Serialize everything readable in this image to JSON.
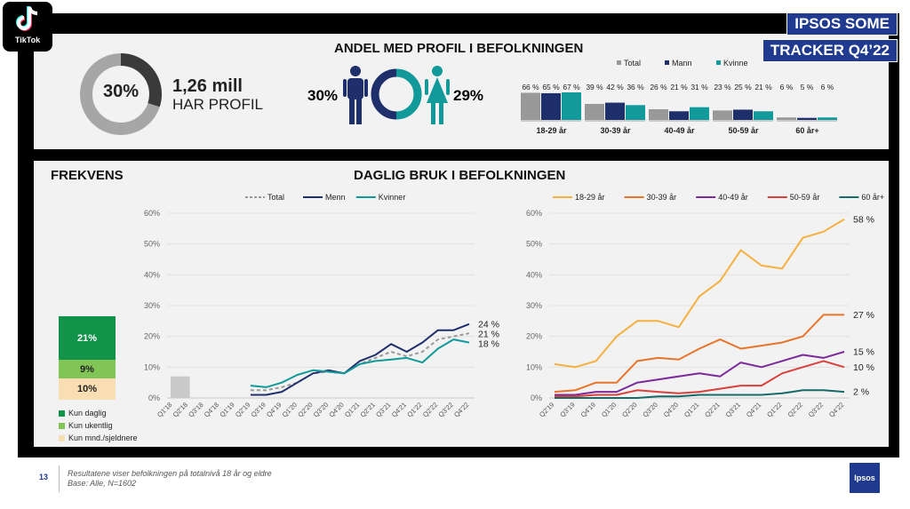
{
  "brand": {
    "tiktok": "TikTok",
    "ipsos": "Ipsos"
  },
  "tags": {
    "line1": "IPSOS SOME",
    "line2": "TRACKER Q4’22"
  },
  "profile": {
    "percent": "30%",
    "value": "1,26 mill",
    "label": "HAR PROFIL",
    "share": 30
  },
  "gender": {
    "title": "ANDEL MED PROFIL I BEFOLKNINGEN",
    "male": "30%",
    "female": "29%"
  },
  "age_bars": {
    "legend": [
      "Total",
      "Mann",
      "Kvinne"
    ],
    "colors": [
      "#999999",
      "#1f2f6b",
      "#129a9a"
    ],
    "groups": [
      {
        "label": "18-29 år",
        "values": [
          66,
          65,
          67
        ],
        "texts": [
          "66 %",
          "65 %",
          "67 %"
        ]
      },
      {
        "label": "30-39 år",
        "values": [
          39,
          42,
          36
        ],
        "texts": [
          "39 %",
          "42 %",
          "36 %"
        ]
      },
      {
        "label": "40-49 år",
        "values": [
          26,
          21,
          31
        ],
        "texts": [
          "26 %",
          "21 %",
          "31 %"
        ]
      },
      {
        "label": "50-59 år",
        "values": [
          23,
          25,
          21
        ],
        "texts": [
          "23 %",
          "25 %",
          "21 %"
        ]
      },
      {
        "label": "60 år+",
        "values": [
          6,
          5,
          6
        ],
        "texts": [
          "6 %",
          "5 %",
          "6 %"
        ]
      }
    ]
  },
  "frekvens": {
    "title": "FREKVENS",
    "segments": [
      {
        "label": "Kun daglig",
        "value": "21%",
        "share": 21,
        "color": "#12934a"
      },
      {
        "label": "Kun ukentlig",
        "value": "9%",
        "share": 9,
        "color": "#82c557"
      },
      {
        "label": "Kun mnd./sjeldnere",
        "value": "10%",
        "share": 10,
        "color": "#f8deb2"
      }
    ]
  },
  "daily_title": "DAGLIG BRUK I BEFOLKNINGEN",
  "chart_data": [
    {
      "type": "line",
      "y_ticks": [
        "0%",
        "10%",
        "20%",
        "30%",
        "40%",
        "50%",
        "60%"
      ],
      "ylim": [
        0,
        60
      ],
      "x": [
        "Q1'18",
        "Q2'18",
        "Q3'18",
        "Q4'18",
        "Q1'19",
        "Q2'19",
        "Q3'19",
        "Q4'19",
        "Q1'20",
        "Q2'20",
        "Q3'20",
        "Q4'20",
        "Q1'21",
        "Q2'21",
        "Q3'21",
        "Q4'21",
        "Q1'22",
        "Q2'22",
        "Q3'22",
        "Q4'22"
      ],
      "x_labels": [
        "Q1'18",
        "Q2'18",
        "Q3'18",
        "Q4'18",
        "Q1'19",
        "Q2'19",
        "Q3'19",
        "Q4'19",
        "Q1'20",
        "Q2'20",
        "Q3'20",
        "Q4'20",
        "Q1'21",
        "Q2'21",
        "Q3'21",
        "Q4'21",
        "Q1'22",
        "Q2'22",
        "Q3'22",
        "Q4'22"
      ],
      "start_bar": {
        "x": [
          "Q1'18",
          "Q2'18"
        ],
        "value": 7,
        "color": "#c9c9c9"
      },
      "series": [
        {
          "name": "Total",
          "color": "#999999",
          "dash": true,
          "values": [
            null,
            null,
            null,
            null,
            null,
            2.5,
            2.5,
            3.5,
            5,
            8,
            8.5,
            8,
            11,
            13,
            15,
            13.5,
            15,
            19,
            20,
            21
          ],
          "end_label": "21 %"
        },
        {
          "name": "Menn",
          "color": "#1f2f6b",
          "dash": false,
          "values": [
            null,
            null,
            null,
            null,
            null,
            1,
            1,
            2,
            5,
            8,
            9,
            8,
            12,
            14,
            17.5,
            15,
            18,
            22,
            22,
            24
          ],
          "end_label": "24 %"
        },
        {
          "name": "Kvinner",
          "color": "#129a9a",
          "dash": false,
          "values": [
            null,
            null,
            null,
            null,
            null,
            4,
            3.5,
            5,
            7.5,
            9,
            8.5,
            8,
            11,
            12,
            12.5,
            13,
            11.5,
            16,
            19,
            18
          ],
          "end_label": "18 %"
        }
      ]
    },
    {
      "type": "line",
      "y_ticks": [
        "0%",
        "10%",
        "20%",
        "30%",
        "40%",
        "50%",
        "60%"
      ],
      "ylim": [
        0,
        60
      ],
      "x": [
        "Q2'19",
        "Q3'19",
        "Q4'19",
        "Q1'20",
        "Q2'20",
        "Q3'20",
        "Q4'20",
        "Q1'21",
        "Q2'21",
        "Q3'21",
        "Q4'21",
        "Q1'22",
        "Q2'22",
        "Q3'22",
        "Q4'22"
      ],
      "x_labels": [
        "Q2'19",
        "Q3'19",
        "Q4'19",
        "Q1'20",
        "Q2'20",
        "Q3'20",
        "Q4'20",
        "Q1'21",
        "Q2'21",
        "Q3'21",
        "Q4'21",
        "Q1'22",
        "Q2'22",
        "Q3'22",
        "Q4'22"
      ],
      "series": [
        {
          "name": "18-29 år",
          "color": "#f5b041",
          "values": [
            11,
            10,
            12,
            20,
            25,
            25,
            23,
            33,
            38,
            48,
            43,
            42,
            52,
            54,
            58
          ],
          "end_label": "58 %"
        },
        {
          "name": "30-39 år",
          "color": "#e8742a",
          "values": [
            2,
            2.5,
            5,
            5,
            12,
            13,
            12.5,
            16,
            19,
            16,
            17,
            18,
            20,
            27,
            27
          ],
          "end_label": "27 %"
        },
        {
          "name": "40-49 år",
          "color": "#7b2a9a",
          "values": [
            1,
            1,
            2,
            2,
            5,
            6,
            7,
            8,
            7,
            11.5,
            10,
            12,
            14,
            13,
            15
          ],
          "end_label": "15 %"
        },
        {
          "name": "50-59 år",
          "color": "#d9413a",
          "values": [
            0.5,
            0.5,
            1,
            1,
            2.5,
            2,
            1.5,
            2,
            3,
            4,
            4,
            8,
            10,
            12,
            10
          ],
          "end_label": "10 %"
        },
        {
          "name": "60 år+",
          "color": "#146b67",
          "values": [
            0,
            0,
            0,
            0,
            0,
            0.5,
            0.5,
            1,
            1,
            1,
            1,
            1.5,
            2.5,
            2.5,
            2
          ],
          "end_label": "2 %"
        }
      ]
    }
  ],
  "footer": {
    "page": "13",
    "line1": "Resultatene viser befolkningen på totalnivå 18 år og eldre",
    "line2": "Base: Alle, N=1602"
  }
}
